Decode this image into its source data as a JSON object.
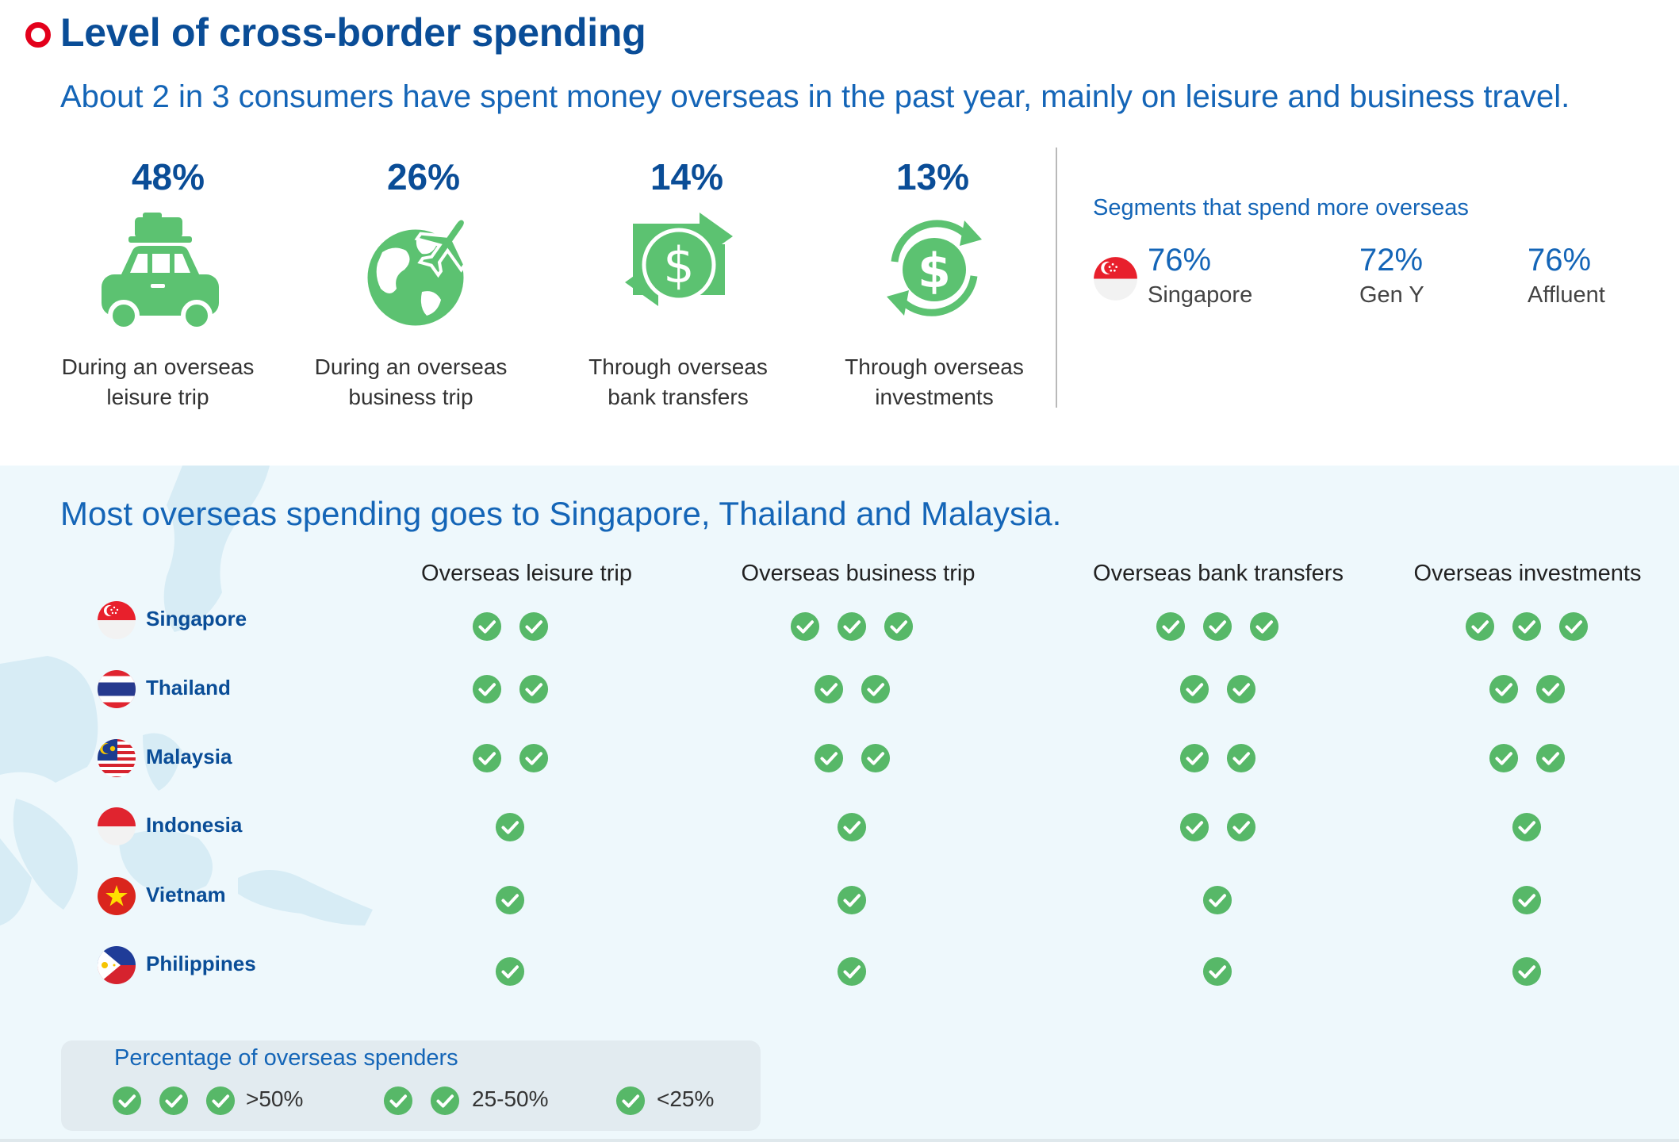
{
  "header": {
    "title": "Level of cross-border spending",
    "subtitle": "About 2 in 3 consumers have spent money overseas in the past year, mainly on leisure and business travel."
  },
  "stats": [
    {
      "pct": "48%",
      "line1": "During an overseas",
      "line2": "leisure trip",
      "icon": "car-icon"
    },
    {
      "pct": "26%",
      "line1": "During an overseas",
      "line2": "business trip",
      "icon": "globe-plane-icon"
    },
    {
      "pct": "14%",
      "line1": "Through overseas",
      "line2": "bank transfers",
      "icon": "dollar-transfer-icon"
    },
    {
      "pct": "13%",
      "line1": "Through overseas",
      "line2": "investments",
      "icon": "dollar-cycle-icon"
    }
  ],
  "segments": {
    "title": "Segments that spend more overseas",
    "items": [
      {
        "pct": "76%",
        "label": "Singapore"
      },
      {
        "pct": "72%",
        "label": "Gen Y"
      },
      {
        "pct": "76%",
        "label": "Affluent"
      }
    ]
  },
  "destinations": {
    "title": "Most overseas spending goes to Singapore, Thailand and Malaysia.",
    "columns": [
      "Overseas leisure trip",
      "Overseas business trip",
      "Overseas bank transfers",
      "Overseas investments"
    ],
    "rows": [
      {
        "country": "Singapore",
        "flag": "singapore-flag-icon",
        "checks": [
          2,
          3,
          3,
          3
        ]
      },
      {
        "country": "Thailand",
        "flag": "thailand-flag-icon",
        "checks": [
          2,
          2,
          2,
          2
        ]
      },
      {
        "country": "Malaysia",
        "flag": "malaysia-flag-icon",
        "checks": [
          2,
          2,
          2,
          2
        ]
      },
      {
        "country": "Indonesia",
        "flag": "indonesia-flag-icon",
        "checks": [
          1,
          1,
          2,
          1
        ]
      },
      {
        "country": "Vietnam",
        "flag": "vietnam-flag-icon",
        "checks": [
          1,
          1,
          1,
          1
        ]
      },
      {
        "country": "Philippines",
        "flag": "philippines-flag-icon",
        "checks": [
          1,
          1,
          1,
          1
        ]
      }
    ]
  },
  "legend": {
    "title": "Percentage of overseas spenders",
    "items": [
      {
        "checks": 3,
        "label": ">50%"
      },
      {
        "checks": 2,
        "label": "25-50%"
      },
      {
        "checks": 1,
        "label": "<25%"
      }
    ]
  },
  "colors": {
    "brand_blue": "#0a4d97",
    "accent_blue": "#1465b7",
    "icon_green": "#5cc271",
    "check_green": "#57b868",
    "marker_red": "#e3001b"
  }
}
